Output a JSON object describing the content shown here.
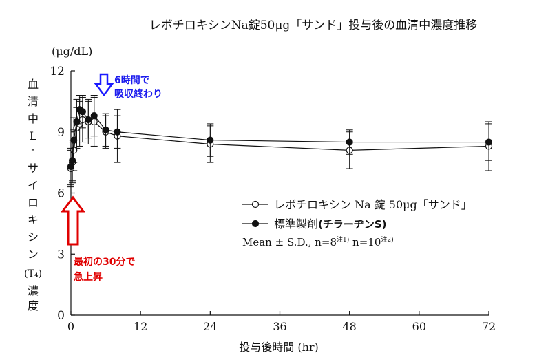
{
  "chart_data": {
    "type": "line",
    "title": "レボチロキシンNa錠50μg「サンド」投与後の血清中濃度推移",
    "y_unit": "(μg/dL)",
    "ylabel_chars": [
      "血",
      "清",
      "中",
      "L",
      "-",
      "サ",
      "イ",
      "ロ",
      "キ",
      "シ",
      "ン",
      "(T₄)",
      "濃",
      "度"
    ],
    "xlabel": "投与後時間 (hr)",
    "xlim": [
      0,
      72
    ],
    "ylim": [
      0,
      12
    ],
    "x_ticks": [
      0,
      12,
      24,
      36,
      48,
      60,
      72
    ],
    "y_ticks": [
      0,
      3,
      6,
      9,
      12
    ],
    "grid": false,
    "legend_position": "center-right",
    "legend_label_2_prefix": "標準製剤",
    "legend_label_2_bold": "(チラーヂンS)",
    "stats_note": {
      "main": "Mean ± S.D., n=8",
      "sup1": "注1)",
      "mid": " n=10",
      "sup2": "注2)"
    },
    "series": [
      {
        "name": "レボチロキシン Na 錠 50μg「サンド」",
        "marker": "open-circle",
        "x": [
          0,
          0.25,
          0.5,
          1,
          1.5,
          2,
          3,
          4,
          6,
          8,
          24,
          48,
          72
        ],
        "y": [
          7.2,
          7.5,
          8.1,
          9.2,
          9.4,
          9.6,
          9.5,
          9.5,
          9.0,
          8.8,
          8.4,
          8.1,
          8.3
        ],
        "err": [
          0.9,
          1.0,
          1.0,
          1.0,
          1.1,
          1.1,
          1.1,
          1.2,
          0.8,
          1.3,
          0.9,
          0.9,
          1.2
        ]
      },
      {
        "name": "標準製剤 (チラーヂンS)",
        "marker": "filled-circle",
        "x": [
          0,
          0.25,
          0.5,
          1,
          1.5,
          2,
          3,
          4,
          6,
          8,
          24,
          48,
          72
        ],
        "y": [
          7.3,
          7.6,
          8.6,
          9.5,
          10.1,
          10.0,
          9.6,
          9.8,
          9.1,
          9.0,
          8.6,
          8.5,
          8.5
        ],
        "err": [
          0.9,
          1.0,
          1.1,
          1.1,
          0.7,
          0.8,
          0.9,
          1.0,
          0.8,
          0.8,
          0.8,
          0.6,
          0.9
        ]
      }
    ]
  },
  "annotations": {
    "blue": [
      "6時間で",
      "吸収終わり"
    ],
    "red": [
      "最初の30分で",
      "急上昇"
    ]
  },
  "colors": {
    "axis": "#111111",
    "annotation_blue": "#1a1aee",
    "annotation_red": "#e00000"
  }
}
